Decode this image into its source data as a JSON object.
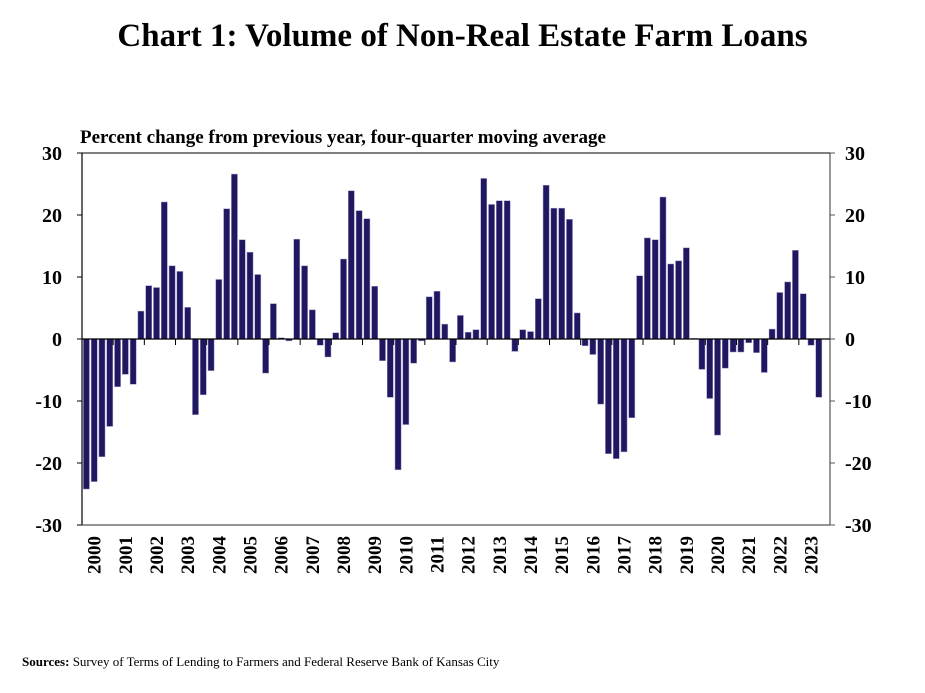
{
  "chart_data": {
    "type": "bar",
    "title": "Chart 1: Volume of Non-Real Estate Farm Loans",
    "subtitle": "Percent change from previous year, four-quarter moving average",
    "xlabel": "",
    "ylabel": "",
    "ylim": [
      -30,
      30
    ],
    "yticks": [
      30,
      20,
      10,
      0,
      -10,
      -20,
      -30
    ],
    "year_labels": [
      "2000",
      "2001",
      "2002",
      "2003",
      "2004",
      "2005",
      "2006",
      "2007",
      "2008",
      "2009",
      "2010",
      "2011",
      "2012",
      "2013",
      "2014",
      "2015",
      "2016",
      "2017",
      "2018",
      "2019",
      "2020",
      "2021",
      "2022",
      "2023"
    ],
    "bar_color": "#1f1760",
    "grid": false,
    "values": [
      -24.2,
      -23.0,
      -19.0,
      -14.1,
      -7.7,
      -5.7,
      -7.3,
      4.5,
      8.6,
      8.3,
      22.1,
      11.8,
      10.9,
      5.1,
      -12.2,
      -9.0,
      -5.1,
      9.6,
      21.0,
      26.6,
      16.0,
      14.0,
      10.4,
      -5.5,
      5.7,
      0.2,
      -0.3,
      16.1,
      11.8,
      4.7,
      -1.0,
      -2.9,
      1.0,
      12.9,
      23.9,
      20.7,
      19.4,
      8.5,
      -3.5,
      -9.4,
      -21.1,
      -13.8,
      -3.9,
      -0.3,
      6.8,
      7.7,
      2.4,
      -3.7,
      3.8,
      1.1,
      1.5,
      25.9,
      21.7,
      22.3,
      22.3,
      -2.0,
      1.5,
      1.2,
      6.5,
      24.8,
      21.1,
      21.1,
      19.3,
      4.2,
      -1.1,
      -2.5,
      -10.5,
      -18.5,
      -19.3,
      -18.2,
      -12.7,
      10.2,
      16.3,
      16.0,
      22.9,
      12.1,
      12.6,
      14.7,
      0.1,
      -4.9,
      -9.6,
      -15.5,
      -4.7,
      -2.1,
      -2.1,
      -0.6,
      -2.2,
      -5.4,
      1.6,
      7.5,
      9.2,
      14.3,
      7.3,
      -1.0,
      -9.4
    ],
    "sources_label": "Sources:",
    "sources_text": "Survey of Terms of Lending to Farmers and Federal Reserve Bank of Kansas City"
  }
}
